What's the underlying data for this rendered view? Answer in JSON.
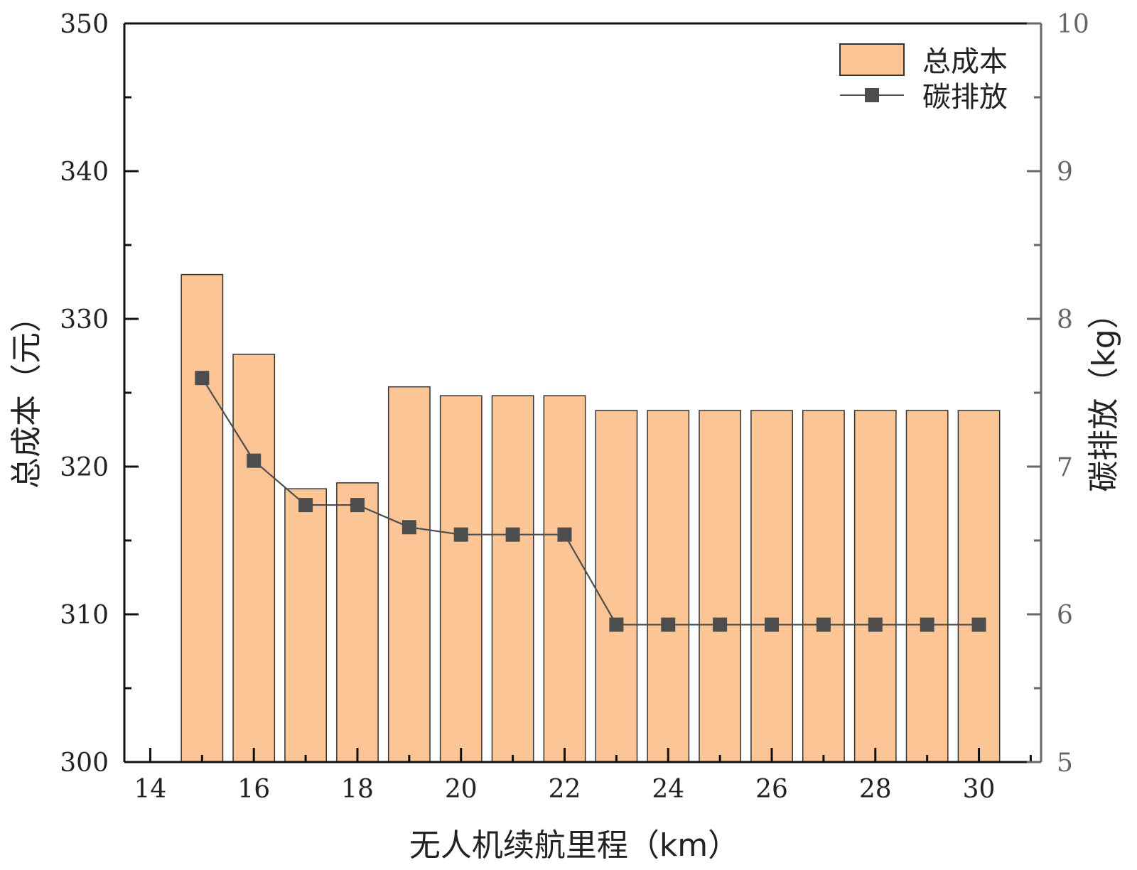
{
  "chart_data": {
    "type": "bar",
    "x": [
      15,
      16,
      17,
      18,
      19,
      20,
      21,
      22,
      23,
      24,
      25,
      26,
      27,
      28,
      29,
      30
    ],
    "xlabel": "无人机续航里程（km）",
    "xlim": [
      13.5,
      31.2
    ],
    "xticks": [
      "14",
      "16",
      "18",
      "20",
      "22",
      "24",
      "26",
      "28",
      "30"
    ],
    "y_left": {
      "label": "总成本（元）",
      "ylim": [
        300,
        350
      ],
      "ticks": [
        "300",
        "310",
        "320",
        "330",
        "340",
        "350"
      ]
    },
    "y_right": {
      "label": "碳排放（kg）",
      "ylim": [
        5,
        10
      ],
      "ticks": [
        "5",
        "6",
        "7",
        "8",
        "9",
        "10"
      ]
    },
    "series": [
      {
        "name": "总成本",
        "kind": "bar",
        "axis": "left",
        "color": "#FBC596",
        "values": [
          333.0,
          327.6,
          318.5,
          318.9,
          325.4,
          324.8,
          324.8,
          324.8,
          323.8,
          323.8,
          323.8,
          323.8,
          323.8,
          323.8,
          323.8,
          323.8
        ]
      },
      {
        "name": "碳排放",
        "kind": "line",
        "marker": "square",
        "axis": "right",
        "color": "#4d4d4d",
        "values": [
          7.6,
          7.04,
          6.74,
          6.74,
          6.59,
          6.54,
          6.54,
          6.54,
          5.93,
          5.93,
          5.93,
          5.93,
          5.93,
          5.93,
          5.93,
          5.93
        ]
      }
    ],
    "legend": {
      "position": "top-right",
      "entries": [
        "总成本",
        "碳排放"
      ]
    },
    "grid": false
  }
}
